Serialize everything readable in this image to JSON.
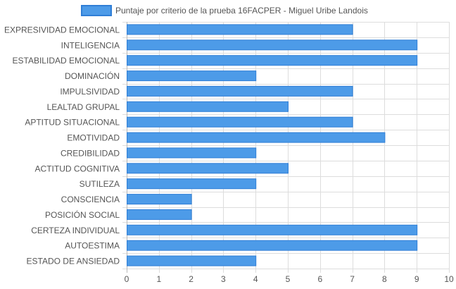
{
  "chart_data": {
    "type": "bar",
    "orientation": "horizontal",
    "title": "",
    "xlabel": "",
    "ylabel": "",
    "legend_position": "top",
    "grid": true,
    "xlim": [
      0,
      10
    ],
    "x_ticks": [
      0,
      1,
      2,
      3,
      4,
      5,
      6,
      7,
      8,
      9,
      10
    ],
    "categories": [
      "EXPRESIVIDAD EMOCIONAL",
      "INTELIGENCIA",
      "ESTABILIDAD EMOCIONAL",
      "DOMINACIÓN",
      "IMPULSIVIDAD",
      "LEALTAD GRUPAL",
      "APTITUD SITUACIONAL",
      "EMOTIVIDAD",
      "CREDIBILIDAD",
      "ACTITUD COGNITIVA",
      "SUTILEZA",
      "CONSCIENCIA",
      "POSICIÓN SOCIAL",
      "CERTEZA INDIVIDUAL",
      "AUTOESTIMA",
      "ESTADO DE ANSIEDAD"
    ],
    "series": [
      {
        "name": "Puntaje por criterio de la prueba 16FACPER - Miguel Uribe Landois",
        "values": [
          7,
          9,
          9,
          4,
          7,
          5,
          7,
          8,
          4,
          5,
          4,
          2,
          2,
          9,
          9,
          4
        ]
      }
    ],
    "colors": {
      "bar_fill": "#4d9be8",
      "bar_stroke": "#2f7ed6",
      "grid": "#dddddd",
      "axis": "#bbbbbb",
      "text": "#555555"
    }
  }
}
